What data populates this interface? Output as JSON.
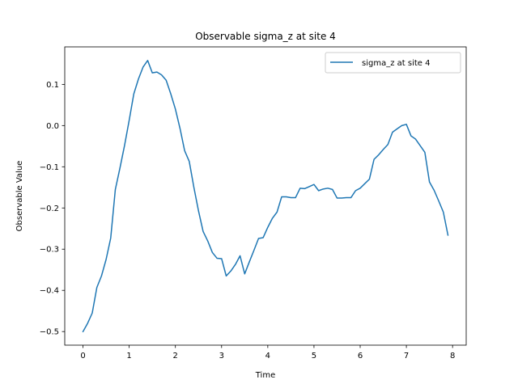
{
  "chart_data": {
    "type": "line",
    "title": "Observable sigma_z at site 4",
    "xlabel": "Time",
    "ylabel": "Observable Value",
    "xlim": [
      -0.395,
      8.295
    ],
    "ylim": [
      -0.533,
      0.191
    ],
    "xticks": [
      0,
      1,
      2,
      3,
      4,
      5,
      6,
      7,
      8
    ],
    "xtick_labels": [
      "0",
      "1",
      "2",
      "3",
      "4",
      "5",
      "6",
      "7",
      "8"
    ],
    "yticks": [
      -0.5,
      -0.4,
      -0.3,
      -0.2,
      -0.1,
      0.0,
      0.1
    ],
    "ytick_labels": [
      "−0.5",
      "−0.4",
      "−0.3",
      "−0.2",
      "−0.1",
      "0.0",
      "0.1"
    ],
    "grid": false,
    "legend_position": "upper right",
    "series": [
      {
        "name": "sigma_z at site 4",
        "color": "#1f77b4",
        "x": [
          0.0,
          0.1,
          0.2,
          0.3,
          0.4,
          0.5,
          0.6,
          0.7,
          0.8,
          0.9,
          1.0,
          1.1,
          1.2,
          1.3,
          1.4,
          1.5,
          1.6,
          1.7,
          1.8,
          1.9,
          2.0,
          2.1,
          2.2,
          2.3,
          2.4,
          2.5,
          2.6,
          2.7,
          2.8,
          2.9,
          3.0,
          3.1,
          3.2,
          3.3,
          3.4,
          3.5,
          3.6,
          3.7,
          3.8,
          3.9,
          4.0,
          4.1,
          4.2,
          4.3,
          4.4,
          4.5,
          4.6,
          4.7,
          4.8,
          4.9,
          5.0,
          5.1,
          5.2,
          5.3,
          5.4,
          5.5,
          5.6,
          5.7,
          5.8,
          5.9,
          6.0,
          6.1,
          6.2,
          6.3,
          6.4,
          6.5,
          6.6,
          6.7,
          6.8,
          6.9,
          7.0,
          7.1,
          7.2,
          7.3,
          7.4,
          7.5,
          7.6,
          7.7,
          7.8,
          7.9
        ],
        "y": [
          -0.5,
          -0.48,
          -0.455,
          -0.393,
          -0.365,
          -0.325,
          -0.273,
          -0.155,
          -0.103,
          -0.048,
          0.013,
          0.077,
          0.113,
          0.142,
          0.158,
          0.128,
          0.13,
          0.123,
          0.11,
          0.077,
          0.04,
          -0.007,
          -0.061,
          -0.087,
          -0.15,
          -0.207,
          -0.257,
          -0.28,
          -0.308,
          -0.322,
          -0.323,
          -0.365,
          -0.353,
          -0.337,
          -0.316,
          -0.36,
          -0.331,
          -0.303,
          -0.274,
          -0.272,
          -0.247,
          -0.225,
          -0.21,
          -0.173,
          -0.173,
          -0.175,
          -0.175,
          -0.152,
          -0.153,
          -0.148,
          -0.143,
          -0.158,
          -0.154,
          -0.152,
          -0.155,
          -0.176,
          -0.176,
          -0.175,
          -0.175,
          -0.158,
          -0.152,
          -0.141,
          -0.13,
          -0.082,
          -0.071,
          -0.058,
          -0.046,
          -0.016,
          -0.008,
          0.0,
          0.003,
          -0.025,
          -0.033,
          -0.049,
          -0.065,
          -0.137,
          -0.157,
          -0.183,
          -0.21,
          -0.266
        ]
      }
    ]
  }
}
